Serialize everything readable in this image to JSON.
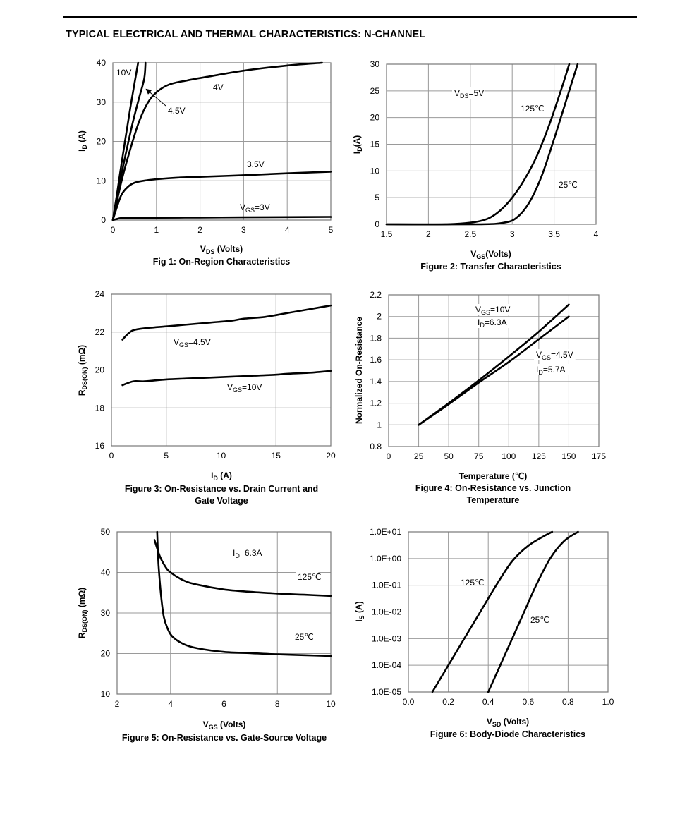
{
  "page": {
    "title": "TYPICAL ELECTRICAL AND THERMAL CHARACTERISTICS: N-CHANNEL"
  },
  "chart_data": [
    {
      "id": "fig1",
      "type": "line",
      "caption": "Fig 1: On-Region Characteristics",
      "xlabel": "VDS (Volts)",
      "ylabel": "ID (A)",
      "xlim": [
        0,
        5
      ],
      "ylim": [
        0,
        40
      ],
      "xticks": [
        "0",
        "1",
        "2",
        "3",
        "4",
        "5"
      ],
      "yticks": [
        "0",
        "10",
        "20",
        "30",
        "40"
      ],
      "grid": true,
      "series": [
        {
          "name": "10V",
          "points": [
            [
              0,
              0
            ],
            [
              0.1,
              7
            ],
            [
              0.2,
              14.5
            ],
            [
              0.3,
              21.5
            ],
            [
              0.4,
              28.5
            ],
            [
              0.5,
              35
            ],
            [
              0.58,
              40
            ]
          ]
        },
        {
          "name": "4.5V",
          "points": [
            [
              0,
              0
            ],
            [
              0.15,
              9
            ],
            [
              0.3,
              17
            ],
            [
              0.45,
              24.5
            ],
            [
              0.6,
              31
            ],
            [
              0.72,
              36
            ],
            [
              0.75,
              40
            ]
          ]
        },
        {
          "name": "4V",
          "points": [
            [
              0,
              0
            ],
            [
              0.2,
              10
            ],
            [
              0.4,
              18
            ],
            [
              0.6,
              25
            ],
            [
              0.8,
              29.8
            ],
            [
              1.0,
              32.5
            ],
            [
              1.3,
              34.5
            ],
            [
              1.7,
              35.5
            ],
            [
              2.2,
              36.5
            ],
            [
              3,
              38
            ],
            [
              4,
              39.3
            ],
            [
              4.8,
              40
            ]
          ]
        },
        {
          "name": "3.5V",
          "points": [
            [
              0,
              0
            ],
            [
              0.1,
              3.5
            ],
            [
              0.2,
              6.5
            ],
            [
              0.35,
              8.5
            ],
            [
              0.5,
              9.5
            ],
            [
              0.7,
              10
            ],
            [
              1.0,
              10.4
            ],
            [
              1.5,
              10.8
            ],
            [
              2,
              11.0
            ],
            [
              3,
              11.4
            ],
            [
              4,
              11.9
            ],
            [
              5,
              12.3
            ]
          ]
        },
        {
          "name": "VGS=3V",
          "points": [
            [
              0,
              0
            ],
            [
              0.1,
              0.3
            ],
            [
              0.2,
              0.5
            ],
            [
              0.5,
              0.6
            ],
            [
              1,
              0.6
            ],
            [
              2,
              0.65
            ],
            [
              3,
              0.7
            ],
            [
              4,
              0.75
            ],
            [
              5,
              0.8
            ]
          ]
        }
      ],
      "annotations": [
        "10V",
        "4V",
        "4.5V",
        "3.5V",
        "VGS=3V"
      ]
    },
    {
      "id": "fig2",
      "type": "line",
      "caption": "Figure 2: Transfer Characteristics",
      "xlabel": "VGS(Volts)",
      "ylabel": "ID(A)",
      "xlim": [
        1.5,
        4
      ],
      "ylim": [
        0,
        30
      ],
      "xticks": [
        "1.5",
        "2",
        "2.5",
        "3",
        "3.5",
        "4"
      ],
      "yticks": [
        "0",
        "5",
        "10",
        "15",
        "20",
        "25",
        "30"
      ],
      "grid": true,
      "series": [
        {
          "name": "125℃",
          "points": [
            [
              1.5,
              0
            ],
            [
              2.2,
              0
            ],
            [
              2.5,
              0.3
            ],
            [
              2.7,
              1
            ],
            [
              2.85,
              2.5
            ],
            [
              3.0,
              5
            ],
            [
              3.15,
              8.5
            ],
            [
              3.3,
              13
            ],
            [
              3.45,
              19
            ],
            [
              3.6,
              26
            ],
            [
              3.68,
              30
            ]
          ]
        },
        {
          "name": "25℃",
          "points": [
            [
              1.5,
              0
            ],
            [
              2.6,
              0
            ],
            [
              2.9,
              0.3
            ],
            [
              3.05,
              1.2
            ],
            [
              3.2,
              4
            ],
            [
              3.35,
              9
            ],
            [
              3.5,
              16
            ],
            [
              3.6,
              21
            ],
            [
              3.72,
              27
            ],
            [
              3.78,
              30
            ]
          ]
        }
      ],
      "annotations": [
        "VDS=5V",
        "125℃",
        "25℃"
      ]
    },
    {
      "id": "fig3",
      "type": "line",
      "caption": "Figure 3: On-Resistance vs. Drain Current and Gate Voltage",
      "xlabel": "ID (A)",
      "ylabel": "RDS(ON) (mΩ)",
      "xlim": [
        0,
        20
      ],
      "ylim": [
        16,
        24
      ],
      "xticks": [
        "0",
        "5",
        "10",
        "15",
        "20"
      ],
      "yticks": [
        "16",
        "18",
        "20",
        "22",
        "24"
      ],
      "grid": true,
      "series": [
        {
          "name": "VGS=4.5V",
          "points": [
            [
              1,
              21.6
            ],
            [
              1.5,
              21.9
            ],
            [
              2,
              22.1
            ],
            [
              3,
              22.2
            ],
            [
              5,
              22.3
            ],
            [
              7,
              22.4
            ],
            [
              9,
              22.5
            ],
            [
              11,
              22.6
            ],
            [
              12,
              22.7
            ],
            [
              14,
              22.8
            ],
            [
              16,
              23.0
            ],
            [
              18,
              23.2
            ],
            [
              19,
              23.3
            ],
            [
              20,
              23.4
            ]
          ]
        },
        {
          "name": "VGS=10V",
          "points": [
            [
              1,
              19.2
            ],
            [
              2,
              19.4
            ],
            [
              3,
              19.4
            ],
            [
              5,
              19.5
            ],
            [
              7,
              19.55
            ],
            [
              9,
              19.6
            ],
            [
              11,
              19.65
            ],
            [
              13,
              19.7
            ],
            [
              15,
              19.75
            ],
            [
              16,
              19.8
            ],
            [
              18,
              19.85
            ],
            [
              20,
              19.95
            ]
          ]
        }
      ],
      "annotations": [
        "VGS=4.5V",
        "VGS=10V"
      ]
    },
    {
      "id": "fig4",
      "type": "line",
      "caption": "Figure 4: On-Resistance vs. Junction Temperature",
      "xlabel": "Temperature (℃)",
      "ylabel": "Normalized On-Resistance",
      "xlim": [
        0,
        175
      ],
      "ylim": [
        0.8,
        2.2
      ],
      "xticks": [
        "0",
        "25",
        "50",
        "75",
        "100",
        "125",
        "150",
        "175"
      ],
      "yticks": [
        "0.8",
        "1",
        "1.2",
        "1.4",
        "1.6",
        "1.8",
        "2",
        "2.2"
      ],
      "grid": true,
      "series": [
        {
          "name": "VGS=10V ID=6.3A",
          "points": [
            [
              25,
              1.0
            ],
            [
              50,
              1.2
            ],
            [
              75,
              1.41
            ],
            [
              100,
              1.63
            ],
            [
              125,
              1.86
            ],
            [
              150,
              2.11
            ]
          ]
        },
        {
          "name": "VGS=4.5V ID=5.7A",
          "points": [
            [
              25,
              1.0
            ],
            [
              50,
              1.19
            ],
            [
              75,
              1.39
            ],
            [
              100,
              1.58
            ],
            [
              125,
              1.79
            ],
            [
              150,
              2.0
            ]
          ]
        }
      ],
      "annotations": [
        "VGS=10V",
        "ID=6.3A",
        "VGS=4.5V",
        "ID=5.7A"
      ]
    },
    {
      "id": "fig5",
      "type": "line",
      "caption": "Figure 5: On-Resistance vs. Gate-Source Voltage",
      "xlabel": "VGS (Volts)",
      "ylabel": "RDS(ON) (mΩ)",
      "xlim": [
        2,
        10
      ],
      "ylim": [
        10,
        50
      ],
      "xticks": [
        "2",
        "4",
        "6",
        "8",
        "10"
      ],
      "yticks": [
        "10",
        "20",
        "30",
        "40",
        "50"
      ],
      "grid": true,
      "series": [
        {
          "name": "125℃",
          "points": [
            [
              3.4,
              48
            ],
            [
              3.6,
              44
            ],
            [
              3.8,
              41.5
            ],
            [
              4,
              40
            ],
            [
              4.5,
              38
            ],
            [
              5,
              37
            ],
            [
              6,
              35.8
            ],
            [
              7,
              35.2
            ],
            [
              8,
              34.8
            ],
            [
              9,
              34.5
            ],
            [
              10,
              34.2
            ]
          ]
        },
        {
          "name": "25℃",
          "points": [
            [
              3.5,
              50
            ],
            [
              3.55,
              42
            ],
            [
              3.65,
              34
            ],
            [
              3.75,
              29
            ],
            [
              3.9,
              26
            ],
            [
              4.1,
              24
            ],
            [
              4.5,
              22.3
            ],
            [
              5,
              21.3
            ],
            [
              6,
              20.4
            ],
            [
              7,
              20.1
            ],
            [
              8,
              19.8
            ],
            [
              9,
              19.6
            ],
            [
              10,
              19.4
            ]
          ]
        }
      ],
      "annotations": [
        "ID=6.3A",
        "125℃",
        "25℃"
      ]
    },
    {
      "id": "fig6",
      "type": "line",
      "caption": "Figure 6: Body-Diode Characteristics",
      "xlabel": "VSD (Volts)",
      "ylabel": "IS (A)",
      "xlim": [
        0,
        1.0
      ],
      "ylog": true,
      "ylim": [
        1e-05,
        10
      ],
      "xticks": [
        "0.0",
        "0.2",
        "0.4",
        "0.6",
        "0.8",
        "1.0"
      ],
      "yticks": [
        "1.0E-05",
        "1.0E-04",
        "1.0E-03",
        "1.0E-02",
        "1.0E-01",
        "1.0E+00",
        "1.0E+01"
      ],
      "grid": true,
      "series": [
        {
          "name": "125℃",
          "points": [
            [
              0.12,
              1e-05
            ],
            [
              0.2,
              0.0001
            ],
            [
              0.28,
              0.001
            ],
            [
              0.36,
              0.01
            ],
            [
              0.44,
              0.1
            ],
            [
              0.52,
              0.8
            ],
            [
              0.6,
              3
            ],
            [
              0.68,
              7
            ],
            [
              0.72,
              10
            ]
          ]
        },
        {
          "name": "25℃",
          "points": [
            [
              0.4,
              1e-05
            ],
            [
              0.46,
              0.0001
            ],
            [
              0.52,
              0.001
            ],
            [
              0.58,
              0.01
            ],
            [
              0.64,
              0.1
            ],
            [
              0.71,
              1
            ],
            [
              0.78,
              4.5
            ],
            [
              0.85,
              10
            ]
          ]
        }
      ],
      "annotations": [
        "125℃",
        "25℃"
      ]
    }
  ]
}
